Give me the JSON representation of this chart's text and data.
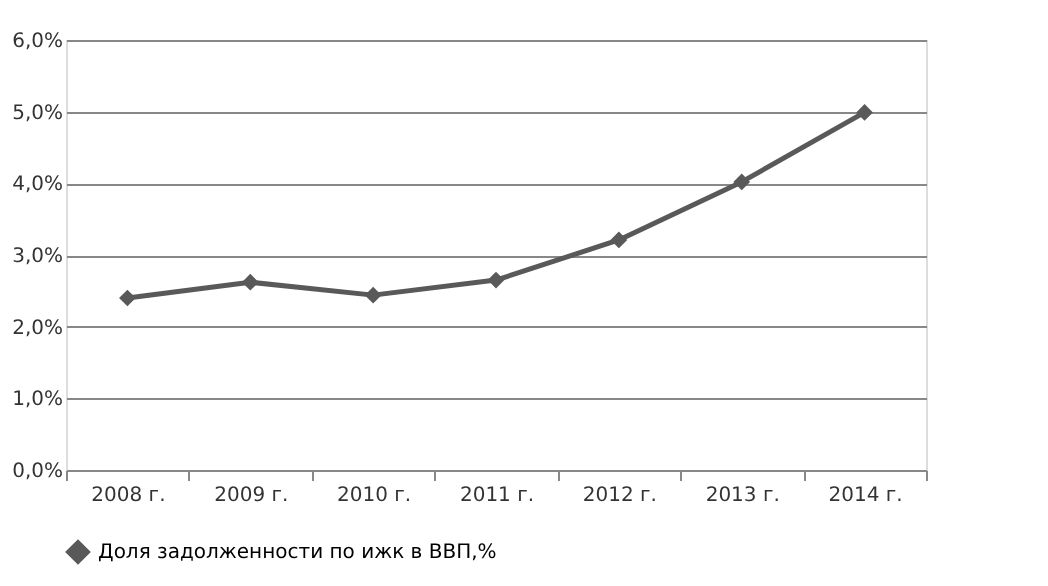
{
  "chart_data": {
    "type": "line",
    "categories": [
      "2008 г.",
      "2009 г.",
      "2010 г.",
      "2011 г.",
      "2012 г.",
      "2013 г.",
      "2014 г."
    ],
    "series": [
      {
        "name": "Доля задолженности по ижк в ВВП,%",
        "color": "#595959",
        "values": [
          2.4,
          2.62,
          2.44,
          2.65,
          3.21,
          4.02,
          4.99
        ]
      }
    ],
    "ylim": [
      0,
      6
    ],
    "yticks": [
      {
        "value": 0,
        "label": "0,0%"
      },
      {
        "value": 1,
        "label": "1,0%"
      },
      {
        "value": 2,
        "label": "2,0%"
      },
      {
        "value": 3,
        "label": "3,0%"
      },
      {
        "value": 4,
        "label": "4,0%"
      },
      {
        "value": 5,
        "label": "5,0%"
      },
      {
        "value": 6,
        "label": "6,0%"
      }
    ],
    "grid": "y",
    "legend": "bottom",
    "marker": "diamond",
    "line_style": "solid"
  }
}
